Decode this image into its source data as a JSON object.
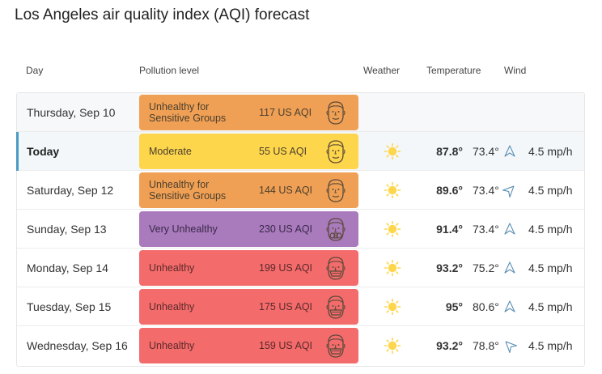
{
  "title": "Los Angeles air quality index (AQI) forecast",
  "headers": {
    "day": "Day",
    "pollution": "Pollution level",
    "weather": "Weather",
    "temperature": "Temperature",
    "wind": "Wind"
  },
  "colors": {
    "orange": "#f0a054",
    "yellow": "#fdd64b",
    "purple": "#a97abc",
    "red": "#f46b6b",
    "sun": "#fdd64b",
    "today_accent": "#4a9bc4"
  },
  "rows": [
    {
      "day": "Thursday, Sep 10",
      "level": "Unhealthy for Sensitive Groups",
      "aqi": "117 US AQI",
      "color": "#f0a054",
      "face": "face-icon",
      "weather": "",
      "temp_high": "",
      "temp_low": "",
      "wind": ""
    },
    {
      "day": "Today",
      "level": "Moderate",
      "aqi": "55 US AQI",
      "color": "#fdd64b",
      "face": "face-icon",
      "weather": "sun-icon",
      "temp_high": "87.8°",
      "temp_low": "73.4°",
      "wind": "4.5 mp/h",
      "wind_dir": "north-east"
    },
    {
      "day": "Saturday, Sep 12",
      "level": "Unhealthy for Sensitive Groups",
      "aqi": "144 US AQI",
      "color": "#f0a054",
      "face": "face-icon",
      "weather": "sun-icon",
      "temp_high": "89.6°",
      "temp_low": "73.4°",
      "wind": "4.5 mp/h",
      "wind_dir": "east"
    },
    {
      "day": "Sunday, Sep 13",
      "level": "Very Unhealthy",
      "aqi": "230 US AQI",
      "color": "#a97abc",
      "face": "gas-mask-face-icon",
      "weather": "sun-icon",
      "temp_high": "91.4°",
      "temp_low": "73.4°",
      "wind": "4.5 mp/h",
      "wind_dir": "north-east"
    },
    {
      "day": "Monday, Sep 14",
      "level": "Unhealthy",
      "aqi": "199 US AQI",
      "color": "#f46b6b",
      "face": "mask-face-icon",
      "weather": "sun-icon",
      "temp_high": "93.2°",
      "temp_low": "75.2°",
      "wind": "4.5 mp/h",
      "wind_dir": "north-east"
    },
    {
      "day": "Tuesday, Sep 15",
      "level": "Unhealthy",
      "aqi": "175 US AQI",
      "color": "#f46b6b",
      "face": "mask-face-icon",
      "weather": "sun-icon",
      "temp_high": "95°",
      "temp_low": "80.6°",
      "wind": "4.5 mp/h",
      "wind_dir": "north-east"
    },
    {
      "day": "Wednesday, Sep 16",
      "level": "Unhealthy",
      "aqi": "159 US AQI",
      "color": "#f46b6b",
      "face": "mask-face-icon",
      "weather": "sun-icon",
      "temp_high": "93.2°",
      "temp_low": "78.8°",
      "wind": "4.5 mp/h",
      "wind_dir": "north"
    }
  ]
}
